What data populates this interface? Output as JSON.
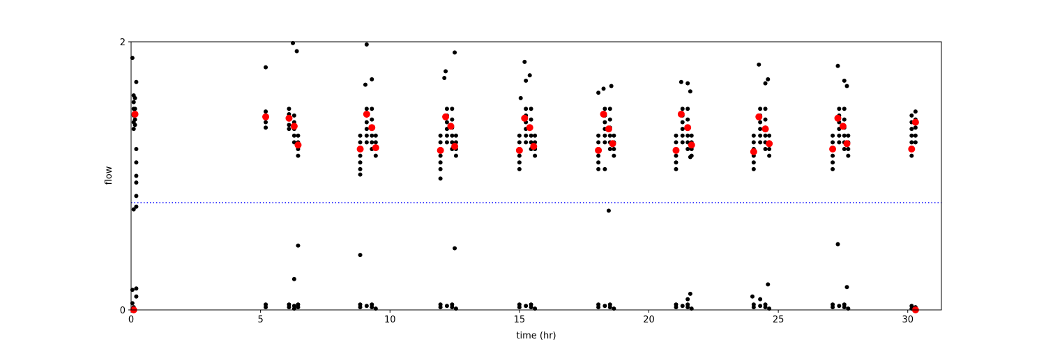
{
  "chart_data": {
    "type": "scatter",
    "xlabel": "time (hr)",
    "ylabel": "flow",
    "xlim": [
      0,
      31.3
    ],
    "ylim": [
      0,
      2
    ],
    "xticks": [
      0,
      5,
      10,
      15,
      20,
      25,
      30
    ],
    "yticks": [
      0,
      2
    ],
    "hline": {
      "value": 0.8,
      "color": "#0000ff",
      "style": "dotted"
    },
    "series": [
      {
        "color": "#000000",
        "size": 3,
        "x": [
          0.1,
          0.1,
          0.1,
          0.1,
          0.1,
          0.1,
          0.15,
          0.15,
          0.15,
          0.15,
          0.05,
          0.2,
          0.2,
          0.2,
          0.2,
          0.2,
          0.2,
          0.1,
          0.2,
          0.05,
          0.05,
          0.05,
          0.1,
          0.1,
          0.2,
          0.2,
          5.2,
          5.2,
          5.2,
          5.2,
          5.2,
          5.2,
          5.2,
          6.1,
          6.1,
          6.1,
          6.1,
          6.1,
          6.3,
          6.3,
          6.3,
          6.3,
          6.3,
          6.45,
          6.45,
          6.45,
          6.45,
          6.25,
          6.4,
          6.45,
          6.3,
          6.1,
          6.1,
          6.3,
          6.3,
          6.45,
          6.45,
          8.85,
          8.85,
          8.85,
          8.85,
          8.85,
          8.85,
          8.85,
          8.85,
          9.1,
          9.1,
          9.1,
          9.1,
          9.1,
          9.1,
          9.1,
          9.3,
          9.3,
          9.3,
          9.3,
          9.3,
          9.3,
          9.3,
          9.3,
          9.45,
          9.45,
          9.45,
          9.45,
          9.45,
          11.95,
          11.95,
          11.95,
          11.95,
          11.95,
          11.95,
          11.95,
          11.95,
          12.2,
          12.2,
          12.2,
          12.2,
          12.2,
          12.2,
          12.2,
          12.4,
          12.4,
          12.4,
          12.4,
          12.4,
          12.4,
          12.4,
          12.4,
          12.55,
          12.55,
          12.55,
          12.55,
          12.55,
          15.0,
          15.0,
          15.0,
          15.0,
          15.0,
          15.0,
          15.0,
          15.0,
          15.25,
          15.25,
          15.25,
          15.25,
          15.25,
          15.25,
          15.25,
          15.45,
          15.45,
          15.45,
          15.45,
          15.45,
          15.45,
          15.45,
          15.45,
          15.6,
          15.6,
          15.6,
          15.6,
          15.6,
          18.05,
          18.05,
          18.05,
          18.05,
          18.05,
          18.05,
          18.05,
          18.05,
          18.3,
          18.3,
          18.3,
          18.3,
          18.3,
          18.3,
          18.3,
          18.5,
          18.5,
          18.5,
          18.5,
          18.5,
          18.5,
          18.5,
          18.5,
          18.65,
          18.65,
          18.65,
          18.65,
          18.65,
          21.05,
          21.05,
          21.05,
          21.05,
          21.05,
          21.05,
          21.05,
          21.05,
          21.3,
          21.3,
          21.3,
          21.3,
          21.3,
          21.3,
          21.3,
          21.5,
          21.5,
          21.5,
          21.5,
          21.5,
          21.5,
          21.5,
          21.5,
          21.65,
          21.65,
          21.65,
          21.65,
          21.65,
          24.05,
          24.05,
          24.05,
          24.05,
          24.05,
          24.05,
          24.05,
          24.05,
          24.3,
          24.3,
          24.3,
          24.3,
          24.3,
          24.3,
          24.3,
          24.5,
          24.5,
          24.5,
          24.5,
          24.5,
          24.5,
          24.5,
          24.5,
          24.65,
          24.65,
          24.65,
          24.65,
          24.65,
          27.1,
          27.1,
          27.1,
          27.1,
          27.1,
          27.1,
          27.1,
          27.1,
          27.35,
          27.35,
          27.35,
          27.35,
          27.35,
          27.35,
          27.35,
          27.55,
          27.55,
          27.55,
          27.55,
          27.55,
          27.55,
          27.55,
          27.55,
          27.7,
          27.7,
          27.7,
          27.7,
          27.7,
          9.1,
          9.3,
          9.05,
          8.85,
          8.85,
          12.15,
          12.1,
          12.5,
          11.95,
          12.5,
          15.05,
          15.2,
          15.4,
          15.25,
          18.25,
          18.55,
          18.3,
          18.45,
          18.05,
          21.25,
          21.5,
          21.6,
          21.6,
          21.6,
          21.5,
          24.25,
          24.6,
          24.5,
          24.0,
          24.3,
          24.6,
          27.3,
          27.55,
          27.65,
          27.3,
          27.65,
          30.15,
          30.15,
          30.15,
          30.15,
          30.15,
          30.15,
          30.15,
          30.3,
          30.3,
          30.3,
          30.3,
          30.3,
          30.15,
          30.15,
          30.3,
          30.3
        ],
        "y": [
          1.6,
          1.55,
          1.5,
          1.45,
          1.4,
          1.35,
          1.58,
          1.5,
          1.42,
          1.38,
          1.88,
          1.7,
          1.2,
          1.1,
          1.0,
          0.95,
          0.85,
          0.75,
          0.77,
          0.15,
          0.05,
          0.0,
          0.02,
          0.0,
          0.16,
          0.1,
          1.48,
          1.44,
          1.4,
          1.36,
          1.81,
          0.02,
          0.04,
          1.5,
          1.46,
          1.42,
          1.38,
          1.35,
          1.45,
          1.4,
          1.35,
          1.3,
          1.25,
          1.3,
          1.25,
          1.2,
          1.15,
          1.99,
          1.93,
          0.48,
          0.23,
          0.02,
          0.04,
          0.03,
          0.01,
          0.02,
          0.04,
          1.3,
          1.25,
          1.2,
          1.15,
          1.1,
          1.05,
          0.02,
          0.04,
          1.5,
          1.45,
          1.4,
          1.35,
          1.3,
          1.25,
          0.03,
          1.5,
          1.42,
          1.36,
          1.3,
          1.25,
          1.2,
          0.02,
          0.04,
          1.3,
          1.25,
          1.2,
          1.15,
          0.01,
          1.3,
          1.25,
          1.2,
          1.15,
          1.1,
          1.05,
          0.02,
          0.04,
          1.5,
          1.45,
          1.4,
          1.35,
          1.3,
          1.25,
          0.03,
          1.5,
          1.42,
          1.36,
          1.3,
          1.25,
          1.2,
          0.02,
          0.04,
          1.3,
          1.25,
          1.2,
          1.15,
          0.01,
          1.3,
          1.25,
          1.2,
          1.15,
          1.1,
          1.05,
          0.02,
          0.04,
          1.5,
          1.45,
          1.4,
          1.35,
          1.3,
          1.25,
          0.03,
          1.5,
          1.42,
          1.36,
          1.3,
          1.25,
          1.2,
          0.02,
          0.04,
          1.3,
          1.25,
          1.2,
          1.15,
          0.01,
          1.3,
          1.25,
          1.2,
          1.15,
          1.1,
          1.05,
          0.02,
          0.04,
          1.5,
          1.45,
          1.4,
          1.35,
          1.3,
          1.25,
          0.03,
          1.5,
          1.42,
          1.36,
          1.3,
          1.25,
          1.2,
          0.02,
          0.04,
          1.3,
          1.25,
          1.2,
          1.15,
          0.01,
          1.3,
          1.25,
          1.2,
          1.15,
          1.1,
          1.05,
          0.02,
          0.04,
          1.5,
          1.45,
          1.4,
          1.35,
          1.3,
          1.25,
          0.03,
          1.5,
          1.42,
          1.36,
          1.3,
          1.25,
          1.2,
          0.02,
          0.04,
          1.3,
          1.25,
          1.2,
          1.15,
          0.01,
          1.3,
          1.25,
          1.2,
          1.15,
          1.1,
          1.05,
          0.02,
          0.04,
          1.5,
          1.45,
          1.4,
          1.35,
          1.3,
          1.25,
          0.03,
          1.5,
          1.42,
          1.36,
          1.3,
          1.25,
          1.2,
          0.02,
          0.04,
          1.3,
          1.25,
          1.2,
          1.15,
          0.01,
          1.3,
          1.25,
          1.2,
          1.15,
          1.1,
          1.05,
          0.02,
          0.04,
          1.5,
          1.45,
          1.4,
          1.35,
          1.3,
          1.25,
          0.03,
          1.5,
          1.42,
          1.36,
          1.3,
          1.25,
          1.2,
          0.02,
          0.04,
          1.3,
          1.25,
          1.2,
          1.15,
          0.01,
          1.98,
          1.72,
          1.68,
          1.01,
          0.41,
          1.78,
          1.73,
          1.92,
          0.98,
          0.46,
          1.58,
          1.85,
          1.75,
          1.71,
          1.65,
          1.67,
          1.05,
          0.74,
          1.62,
          1.7,
          1.69,
          1.63,
          1.14,
          0.12,
          0.08,
          1.83,
          1.72,
          1.69,
          0.1,
          0.08,
          0.19,
          1.82,
          1.71,
          1.67,
          0.49,
          0.17,
          1.45,
          1.4,
          1.35,
          1.3,
          1.25,
          1.2,
          1.15,
          1.48,
          1.42,
          1.36,
          1.3,
          1.25,
          0.03,
          0.01,
          0.02,
          0.0
        ]
      },
      {
        "color": "#ff0000",
        "size": 5,
        "x": [
          0.15,
          5.2,
          6.1,
          6.3,
          6.45,
          8.85,
          9.1,
          9.3,
          9.45,
          11.95,
          12.15,
          12.35,
          12.5,
          15.0,
          15.2,
          15.4,
          15.55,
          18.05,
          18.25,
          18.45,
          18.6,
          21.05,
          21.25,
          21.5,
          21.65,
          24.05,
          24.25,
          24.5,
          24.65,
          27.1,
          27.3,
          27.5,
          27.65,
          30.15,
          30.3,
          30.3,
          0.1
        ],
        "y": [
          1.46,
          1.44,
          1.43,
          1.37,
          1.23,
          1.2,
          1.46,
          1.36,
          1.21,
          1.19,
          1.44,
          1.37,
          1.22,
          1.19,
          1.43,
          1.36,
          1.22,
          1.19,
          1.46,
          1.35,
          1.24,
          1.19,
          1.46,
          1.36,
          1.23,
          1.18,
          1.44,
          1.35,
          1.24,
          1.2,
          1.43,
          1.37,
          1.24,
          1.2,
          1.4,
          0.0,
          0.0
        ]
      }
    ]
  }
}
